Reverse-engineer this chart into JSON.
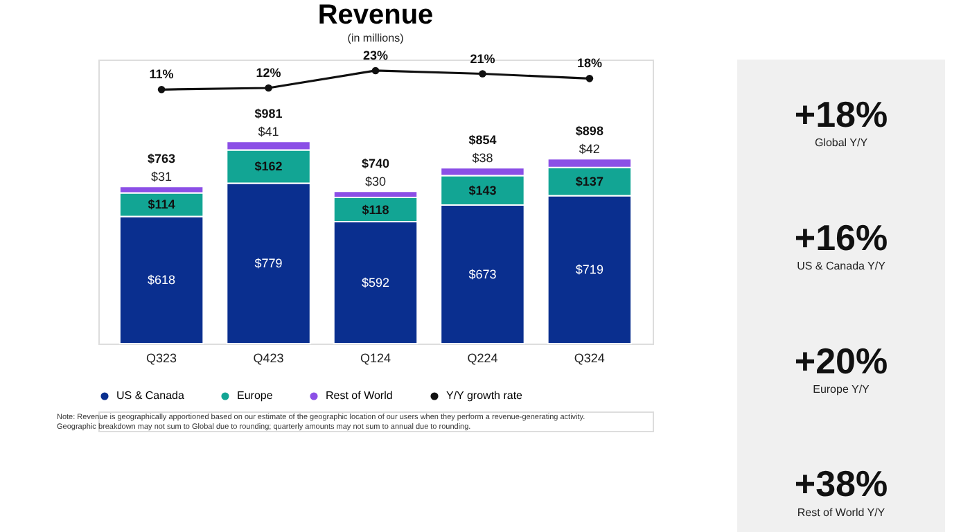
{
  "chart_data": [
    {
      "type": "bar",
      "title": "Revenue",
      "subtitle": "(in millions)",
      "stacked": true,
      "categories": [
        "Q323",
        "Q423",
        "Q124",
        "Q224",
        "Q324"
      ],
      "ylim": [
        0,
        1380
      ],
      "y2lim": [
        -150,
        30
      ],
      "tick_labels": "x",
      "legend": "bottom",
      "series": [
        {
          "name": "US & Canada",
          "color": "#0a2f8f",
          "values": [
            618,
            779,
            592,
            673,
            719
          ],
          "value_labels": [
            "$618",
            "$779",
            "$592",
            "$673",
            "$719"
          ]
        },
        {
          "name": "Europe",
          "color": "#12a594",
          "values": [
            114,
            162,
            118,
            143,
            137
          ],
          "value_labels": [
            "$114",
            "$162",
            "$118",
            "$143",
            "$137"
          ]
        },
        {
          "name": "Rest of World",
          "color": "#8b4fe6",
          "values": [
            31,
            41,
            30,
            38,
            42
          ],
          "value_labels": [
            "$31",
            "$41",
            "$30",
            "$38",
            "$42"
          ]
        },
        {
          "name": "Y/Y growth rate",
          "type": "line",
          "axis": "y2",
          "color": "#111111",
          "marker": "circle",
          "values": [
            11,
            12,
            23,
            21,
            18
          ],
          "value_labels": [
            "11%",
            "12%",
            "23%",
            "21%",
            "18%"
          ]
        }
      ],
      "totals": [
        "$763",
        "$981",
        "$740",
        "$854",
        "$898"
      ],
      "annotations": [
        "Note: Revenue is geographically apportioned based on our estimate of the geographic location of our users when they perform a revenue-generating activity.",
        "Geographic breakdown may not sum to Global due to rounding; quarterly amounts may not sum to annual due to rounding."
      ]
    },
    {
      "type": "other",
      "annotations": [
        "+18%",
        "Global Y/Y",
        "+16%",
        "US & Canada Y/Y",
        "+20%",
        "Europe Y/Y",
        "+38%",
        "Rest of World Y/Y"
      ]
    }
  ]
}
